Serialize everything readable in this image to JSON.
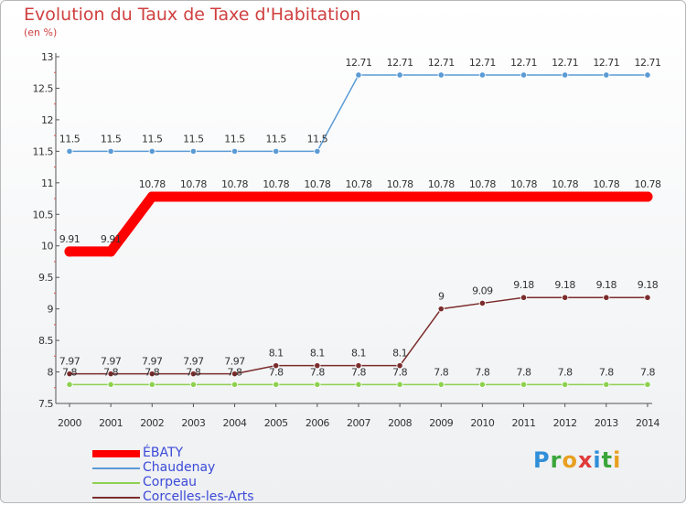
{
  "header": {
    "title": "Evolution du Taux de Taxe d'Habitation",
    "unit": "(en %)"
  },
  "logo": {
    "letters": [
      "P",
      "r",
      "o",
      "x",
      "i",
      "t",
      "i"
    ],
    "colors": [
      "#2f8fd8",
      "#3aa63a",
      "#e8a020",
      "#e03a3a",
      "#2f8fd8",
      "#3aa63a",
      "#e8a020"
    ]
  },
  "chart_data": {
    "type": "line",
    "x": [
      "2000",
      "2001",
      "2002",
      "2003",
      "2004",
      "2005",
      "2006",
      "2007",
      "2008",
      "2009",
      "2010",
      "2011",
      "2012",
      "2013",
      "2014"
    ],
    "ylim": [
      7.5,
      13
    ],
    "yticks": [
      "7.5",
      "8",
      "8.5",
      "9",
      "9.5",
      "10",
      "10.5",
      "11",
      "11.5",
      "12",
      "12.5",
      "13"
    ],
    "grid": false,
    "legend_position": "bottom-left",
    "series": [
      {
        "name": "ÉBATY",
        "color": "#ff0000",
        "values": [
          9.91,
          9.91,
          10.78,
          10.78,
          10.78,
          10.78,
          10.78,
          10.78,
          10.78,
          10.78,
          10.78,
          10.78,
          10.78,
          10.78,
          10.78
        ],
        "labels": [
          "9.91",
          "9.91",
          "10.78",
          "10.78",
          "10.78",
          "10.78",
          "10.78",
          "10.78",
          "10.78",
          "10.78",
          "10.78",
          "10.78",
          "10.78",
          "10.78",
          "10.78"
        ]
      },
      {
        "name": "Chaudenay",
        "color": "#5b9bd5",
        "values": [
          11.5,
          11.5,
          11.5,
          11.5,
          11.5,
          11.5,
          11.5,
          12.71,
          12.71,
          12.71,
          12.71,
          12.71,
          12.71,
          12.71,
          12.71
        ],
        "labels": [
          "11.5",
          "11.5",
          "11.5",
          "11.5",
          "11.5",
          "11.5",
          "11.5",
          "12.71",
          "12.71",
          "12.71",
          "12.71",
          "12.71",
          "12.71",
          "12.71",
          "12.71"
        ]
      },
      {
        "name": "Corpeau",
        "color": "#8ed14f",
        "values": [
          7.8,
          7.8,
          7.8,
          7.8,
          7.8,
          7.8,
          7.8,
          7.8,
          7.8,
          7.8,
          7.8,
          7.8,
          7.8,
          7.8,
          7.8
        ],
        "labels": [
          "7.8",
          "7.8",
          "7.8",
          "7.8",
          "7.8",
          "7.8",
          "7.8",
          "7.8",
          "7.8",
          "7.8",
          "7.8",
          "7.8",
          "7.8",
          "7.8",
          "7.8"
        ]
      },
      {
        "name": "Corcelles-les-Arts",
        "color": "#7b2c2c",
        "values": [
          7.97,
          7.97,
          7.97,
          7.97,
          7.97,
          8.1,
          8.1,
          8.1,
          8.1,
          9,
          9.09,
          9.18,
          9.18,
          9.18,
          9.18
        ],
        "labels": [
          "7.97",
          "7.97",
          "7.97",
          "7.97",
          "7.97",
          "8.1",
          "8.1",
          "8.1",
          "8.1",
          "9",
          "9.09",
          "9.18",
          "9.18",
          "9.18",
          "9.18"
        ]
      }
    ]
  }
}
